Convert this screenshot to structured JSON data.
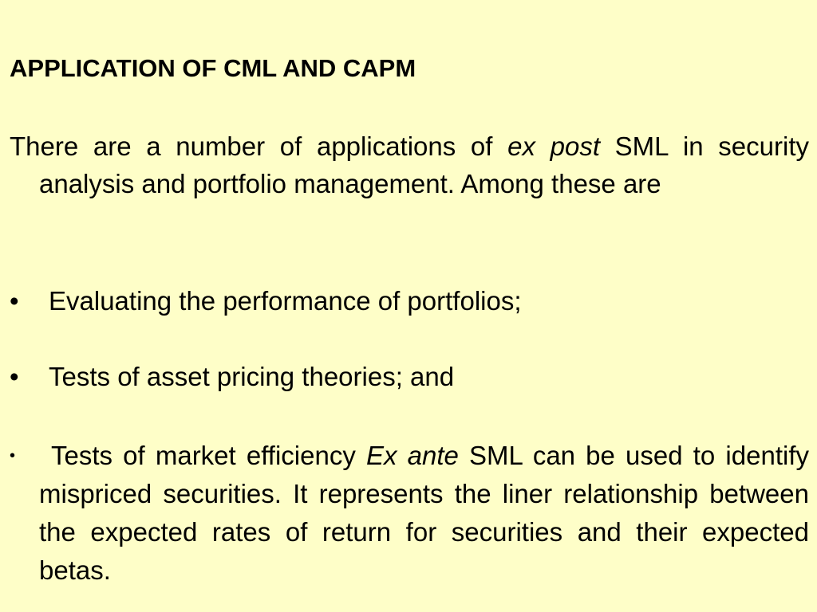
{
  "slide": {
    "title": "APPLICATION OF CML AND CAPM",
    "intro": {
      "before": "There are a number of applications of ",
      "italic": "ex post",
      "after": " SML in security analysis and portfolio management. Among these are"
    },
    "bullets": [
      {
        "symbol": "•",
        "text": "Evaluating the performance of portfolios;"
      },
      {
        "symbol": "•",
        "text": "Tests of asset pricing theories; and"
      }
    ],
    "last_bullet": {
      "symbol": "•",
      "before": "Tests of market efficiency ",
      "italic": "Ex ante",
      "after": " SML can be used to identify mispriced securities. It represents the liner relationship between the expected rates of return for securities and their expected betas."
    },
    "colors": {
      "background": "#fefec8",
      "text": "#000000"
    }
  }
}
